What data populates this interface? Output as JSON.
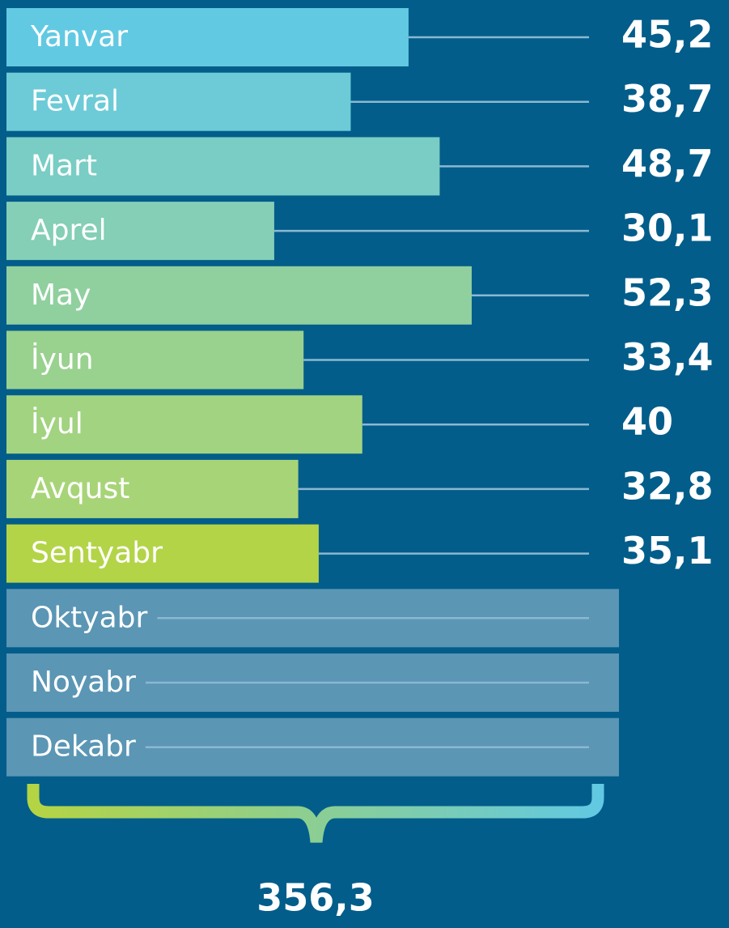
{
  "chart_data": {
    "type": "bar",
    "categories": [
      "Yanvar",
      "Fevral",
      "Mart",
      "Aprel",
      "May",
      "İyun",
      "İyul",
      "Avqust",
      "Sentyabr",
      "Oktyabr",
      "Noyabr",
      "Dekabr"
    ],
    "values": [
      45.2,
      38.7,
      48.7,
      30.1,
      52.3,
      33.4,
      40,
      32.8,
      35.1,
      null,
      null,
      null
    ],
    "value_labels": [
      "45,2",
      "38,7",
      "48,7",
      "30,1",
      "52,3",
      "33,4",
      "40",
      "32,8",
      "35,1",
      null,
      null,
      null
    ],
    "colors": [
      "#62c9e2",
      "#6ccbd6",
      "#79cdc4",
      "#84cfb6",
      "#90d09f",
      "#99d18f",
      "#a1d381",
      "#a8d478",
      "#b4d448",
      "#5b96b5",
      "#5b96b5",
      "#5b96b5"
    ],
    "total": {
      "value": 356.3,
      "label": "356,3"
    }
  }
}
